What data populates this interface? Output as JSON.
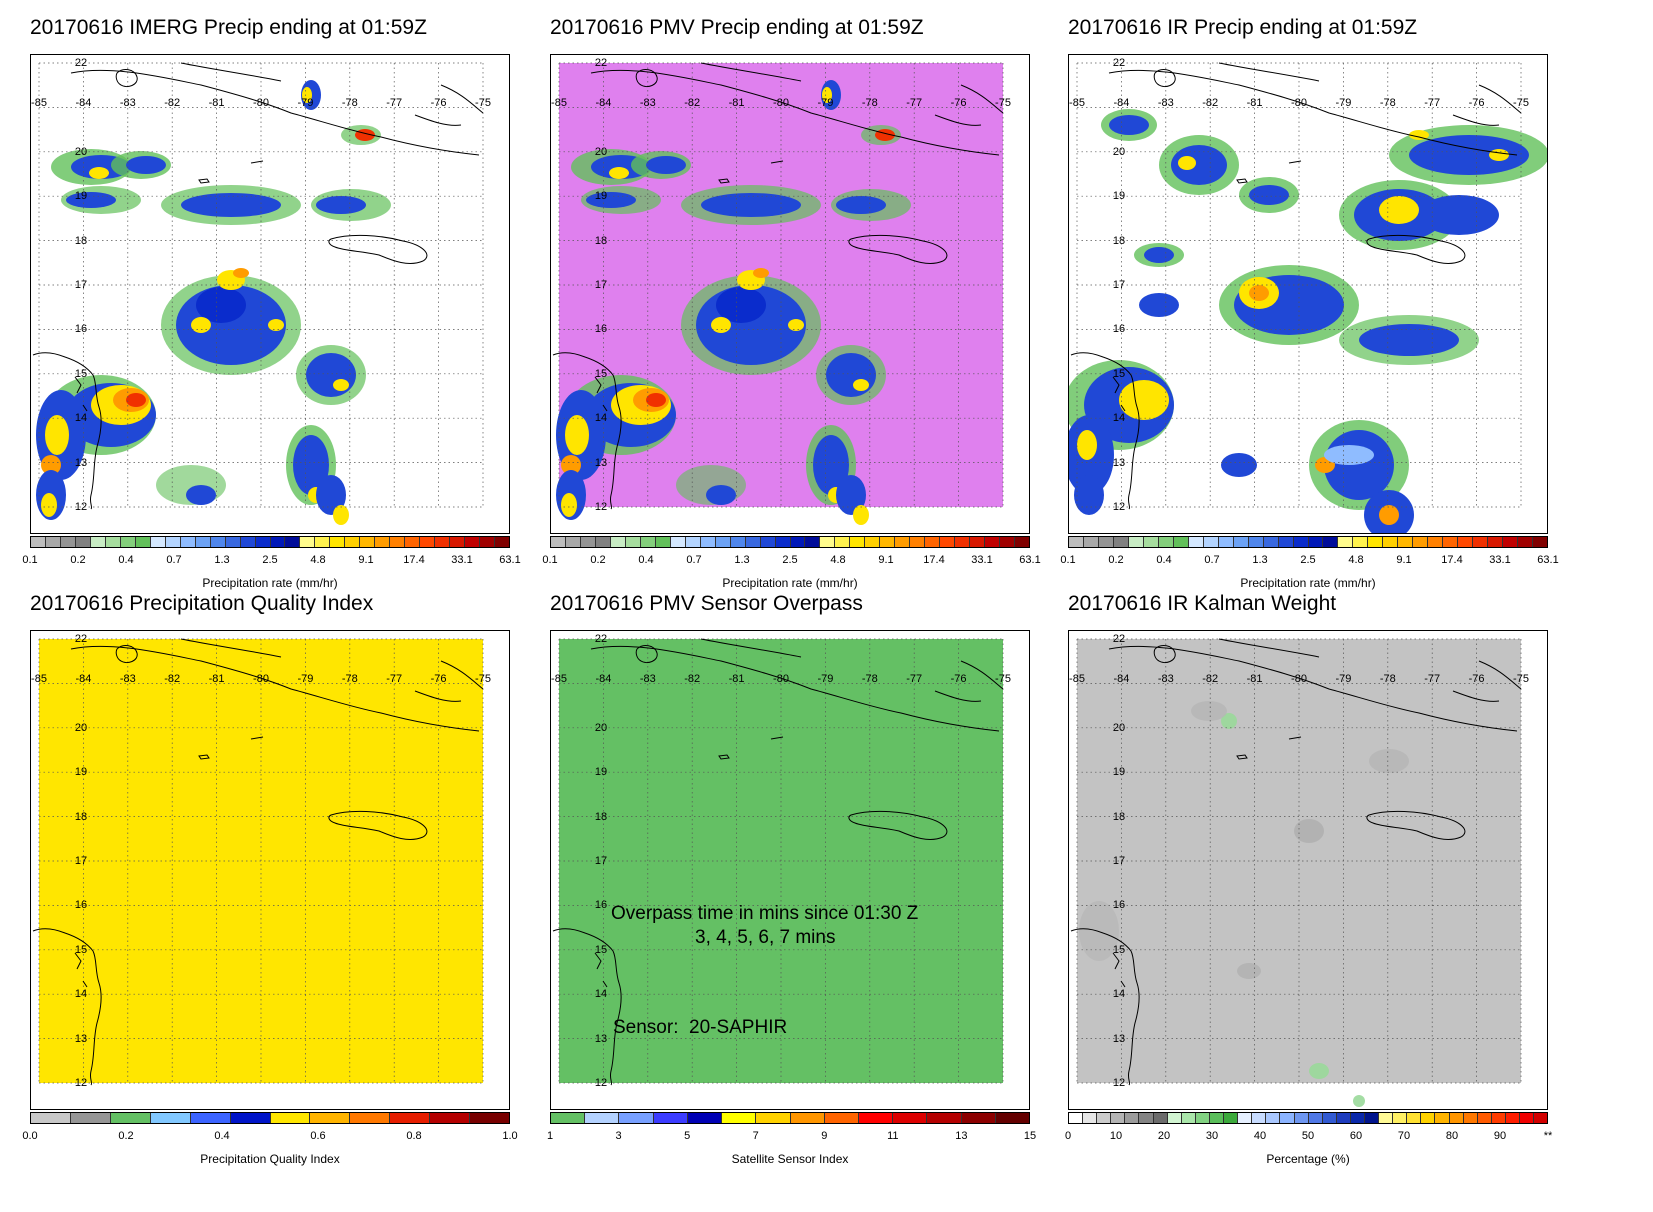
{
  "lon_labels": [
    "-85",
    "-84",
    "-83",
    "-82",
    "-81",
    "-80",
    "-79",
    "-78",
    "-77",
    "-76",
    "-75"
  ],
  "lat_labels": [
    "22",
    "20",
    "19",
    "18",
    "17",
    "16",
    "15",
    "14",
    "13",
    "12"
  ],
  "precip_colorbar": {
    "colors": [
      "#bdbdbd",
      "#a8a8a8",
      "#949494",
      "#808080",
      "#c8ecc4",
      "#a6dd9e",
      "#84cf7c",
      "#62c05a",
      "#d4e8ff",
      "#b3d4ff",
      "#8fbcff",
      "#6ca2f5",
      "#4f86ec",
      "#3868e0",
      "#2048d6",
      "#0a2ccc",
      "#0018b8",
      "#000c99",
      "#fffb8c",
      "#fff24d",
      "#ffe500",
      "#ffd000",
      "#ffb700",
      "#ff9c00",
      "#ff8000",
      "#ff6400",
      "#ff4800",
      "#f03000",
      "#d81800",
      "#c00000",
      "#a00000",
      "#800000"
    ],
    "ticks": [
      "0.1",
      "0.2",
      "0.4",
      "0.7",
      "1.3",
      "2.5",
      "4.8",
      "9.1",
      "17.4",
      "33.1",
      "63.1"
    ],
    "label": "Precipitation rate (mm/hr)"
  },
  "panels": {
    "imerg": {
      "title": "20170616 IMERG Precip ending at 01:59Z",
      "background": "#ffffff"
    },
    "pmv": {
      "title": "20170616 PMV Precip ending at 01:59Z",
      "background": "#df80ee"
    },
    "ir": {
      "title": "20170616 IR Precip ending at 01:59Z",
      "background": "#ffffff"
    },
    "pqi": {
      "title": "20170616 Precipitation Quality Index",
      "background": "#ffe600",
      "colorbar": {
        "colors": [
          "#c8c8c8",
          "#969696",
          "#64c064",
          "#82c8ff",
          "#3c64ff",
          "#0014c8",
          "#ffe600",
          "#ffb400",
          "#ff7800",
          "#e61e00",
          "#b40000",
          "#780000"
        ],
        "ticks": [
          "0.0",
          "0.2",
          "0.4",
          "0.6",
          "0.8",
          "1.0"
        ],
        "label": "Precipitation Quality Index"
      }
    },
    "overpass": {
      "title": "20170616 PMV Sensor Overpass",
      "background": "#64c064",
      "text_line1": "Overpass time in mins since 01:30 Z",
      "text_line2": "3, 4, 5, 6, 7 mins",
      "sensor_label": "Sensor:",
      "sensor_value": "20-SAPHIR",
      "colorbar": {
        "colors": [
          "#64c064",
          "#b4d2ff",
          "#78a0ff",
          "#3c3cff",
          "#0000b4",
          "#ffff00",
          "#ffd200",
          "#ff9600",
          "#ff6400",
          "#ff0000",
          "#dc0000",
          "#b40000",
          "#8c0000",
          "#640000"
        ],
        "ticks": [
          "1",
          "3",
          "5",
          "7",
          "9",
          "11",
          "13",
          "15"
        ],
        "label": "Satellite Sensor Index"
      }
    },
    "kalman": {
      "title": "20170616 IR Kalman Weight",
      "background": "#c3c3c3",
      "colorbar": {
        "colors": [
          "#ffffff",
          "#e6e6e6",
          "#cccccc",
          "#b4b4b4",
          "#9c9c9c",
          "#848484",
          "#6c6c6c",
          "#d2f5d2",
          "#aae6aa",
          "#82d282",
          "#5abe5a",
          "#3caa3c",
          "#e6f0ff",
          "#c8dcff",
          "#aac8ff",
          "#8cb4ff",
          "#6e96f0",
          "#5078e6",
          "#325ad2",
          "#1e3cbe",
          "#0a28aa",
          "#00148c",
          "#fffa96",
          "#fff064",
          "#ffe132",
          "#ffd200",
          "#ffb400",
          "#ff9600",
          "#ff7800",
          "#ff5a00",
          "#ff3c00",
          "#ff1e00",
          "#f00000",
          "#d20000"
        ],
        "ticks": [
          "0",
          "10",
          "20",
          "30",
          "40",
          "50",
          "60",
          "70",
          "80",
          "90",
          "**"
        ],
        "label": "Percentage (%)"
      }
    }
  }
}
